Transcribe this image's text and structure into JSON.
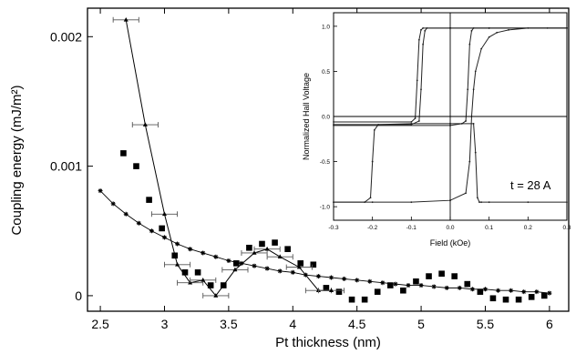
{
  "chart_data": [
    {
      "type": "scatter",
      "xlabel": "Pt thickness (nm)",
      "ylabel": "Coupling energy (mJ/m²)",
      "xlim": [
        2.4,
        6.15
      ],
      "ylim": [
        -0.00012,
        0.00222
      ],
      "xticks": [
        "2.5",
        "3",
        "3.5",
        "4",
        "4.5",
        "5",
        "5.5",
        "6"
      ],
      "xtick_values": [
        2.5,
        3,
        3.5,
        4,
        4.5,
        5,
        5.5,
        6
      ],
      "yticks": [
        "0",
        "0.001",
        "0.002"
      ],
      "ytick_values": [
        0,
        0.001,
        0.002
      ],
      "series": [
        {
          "marker": "triangle",
          "style": "line+errorbars",
          "x": [
            2.7,
            2.85,
            3.0,
            3.1,
            3.2,
            3.3,
            3.4,
            3.55,
            3.7,
            3.8,
            3.9,
            4.05,
            4.2,
            4.3
          ],
          "y": [
            0.00213,
            0.00132,
            0.00063,
            0.00024,
            0.0001,
            0.00012,
            0.0,
            0.0002,
            0.00033,
            0.00036,
            0.0003,
            0.00022,
            4e-05,
            4e-05
          ],
          "xerr": [
            0.1,
            0.1,
            0.1,
            0.1,
            0.1,
            0.1,
            0.1,
            0.1,
            0.1,
            0.1,
            0.1,
            0.1,
            0.1,
            0.1
          ]
        },
        {
          "marker": "square",
          "style": "points",
          "x": [
            2.68,
            2.78,
            2.88,
            2.98,
            3.08,
            3.16,
            3.26,
            3.36,
            3.46,
            3.56,
            3.66,
            3.76,
            3.86,
            3.96,
            4.06,
            4.16,
            4.26,
            4.36,
            4.46,
            4.56,
            4.66,
            4.76,
            4.86,
            4.96,
            5.06,
            5.16,
            5.26,
            5.36,
            5.46,
            5.56,
            5.66,
            5.76,
            5.86,
            5.96
          ],
          "y": [
            0.0011,
            0.001,
            0.00074,
            0.00052,
            0.00031,
            0.00018,
            0.00018,
            8e-05,
            8e-05,
            0.00025,
            0.00037,
            0.0004,
            0.00041,
            0.00036,
            0.00025,
            0.00024,
            6e-05,
            3e-05,
            -3e-05,
            -3e-05,
            3e-05,
            8e-05,
            4e-05,
            0.00011,
            0.00015,
            0.00017,
            0.00015,
            9e-05,
            3e-05,
            -2e-05,
            -3e-05,
            -3e-05,
            -1e-05,
            0.0
          ]
        },
        {
          "marker": "star",
          "style": "line",
          "x": [
            2.5,
            2.6,
            2.7,
            2.8,
            2.9,
            3.0,
            3.1,
            3.2,
            3.3,
            3.4,
            3.5,
            3.6,
            3.7,
            3.8,
            3.9,
            4.0,
            4.1,
            4.2,
            4.3,
            4.4,
            4.5,
            4.6,
            4.7,
            4.8,
            4.9,
            5.0,
            5.1,
            5.2,
            5.3,
            5.4,
            5.5,
            5.6,
            5.7,
            5.8,
            5.9,
            6.0
          ],
          "y": [
            0.00081,
            0.00071,
            0.00063,
            0.00056,
            0.0005,
            0.00045,
            0.0004,
            0.00036,
            0.00033,
            0.0003,
            0.00027,
            0.00025,
            0.00023,
            0.00021,
            0.00019,
            0.00018,
            0.00016,
            0.00015,
            0.00014,
            0.00013,
            0.00012,
            0.00011,
            0.0001,
            9e-05,
            8e-05,
            8e-05,
            7e-05,
            6e-05,
            6e-05,
            5e-05,
            5e-05,
            4e-05,
            4e-05,
            3e-05,
            3e-05,
            2e-05
          ]
        }
      ]
    },
    {
      "type": "line",
      "inset": true,
      "xlabel": "Field (kOe)",
      "ylabel": "Normalized Hall Voltage",
      "annotation": "t = 28 A",
      "xlim": [
        -0.3,
        0.3
      ],
      "ylim": [
        -1.15,
        1.15
      ],
      "xticks": [
        "-0.3",
        "-0.2",
        "-0.1",
        "0.0",
        "0.1",
        "0.2",
        "0.3"
      ],
      "xtick_values": [
        -0.3,
        -0.2,
        -0.1,
        0.0,
        0.1,
        0.2,
        0.3
      ],
      "yticks": [
        "-1.0",
        "-0.5",
        "0.0",
        "0.5",
        "1.0"
      ],
      "ytick_values": [
        -1.0,
        -0.5,
        0.0,
        0.5,
        1.0
      ],
      "series": [
        {
          "x": [
            -0.3,
            -0.22,
            -0.205,
            -0.2,
            -0.195,
            -0.185,
            -0.1,
            0.0,
            0.06,
            0.065,
            0.07,
            0.075,
            0.08,
            0.1,
            0.2,
            0.3
          ],
          "y": [
            -0.95,
            -0.95,
            -0.9,
            -0.5,
            -0.15,
            -0.09,
            -0.08,
            -0.08,
            -0.08,
            -0.4,
            -0.9,
            -0.95,
            -0.95,
            -0.95,
            -0.95,
            -0.95
          ]
        },
        {
          "x": [
            -0.3,
            -0.2,
            -0.1,
            0.0,
            0.04,
            0.05,
            0.055,
            0.06,
            0.065,
            0.08,
            0.1,
            0.12,
            0.15,
            0.2,
            0.25,
            0.3
          ],
          "y": [
            -0.95,
            -0.95,
            -0.95,
            -0.93,
            -0.85,
            -0.5,
            0.0,
            0.3,
            0.5,
            0.75,
            0.88,
            0.93,
            0.96,
            0.98,
            0.98,
            0.98
          ]
        },
        {
          "x": [
            -0.3,
            -0.1,
            -0.09,
            -0.085,
            -0.08,
            -0.075,
            -0.07,
            0.0,
            0.1,
            0.3
          ],
          "y": [
            -0.06,
            -0.06,
            -0.02,
            0.4,
            0.85,
            0.96,
            0.98,
            0.98,
            0.98,
            0.98
          ]
        },
        {
          "x": [
            -0.3,
            -0.1,
            -0.08,
            -0.075,
            -0.07,
            -0.065,
            -0.06,
            0.0,
            0.1,
            0.3
          ],
          "y": [
            -0.09,
            -0.09,
            -0.05,
            0.3,
            0.8,
            0.95,
            0.98,
            0.98,
            0.98,
            0.98
          ]
        },
        {
          "x": [
            -0.3,
            0.0,
            0.03,
            0.04,
            0.045,
            0.05,
            0.055,
            0.06,
            0.1,
            0.3
          ],
          "y": [
            -0.1,
            -0.1,
            -0.08,
            -0.05,
            0.3,
            0.8,
            0.95,
            0.98,
            0.98,
            0.98
          ]
        }
      ]
    }
  ]
}
